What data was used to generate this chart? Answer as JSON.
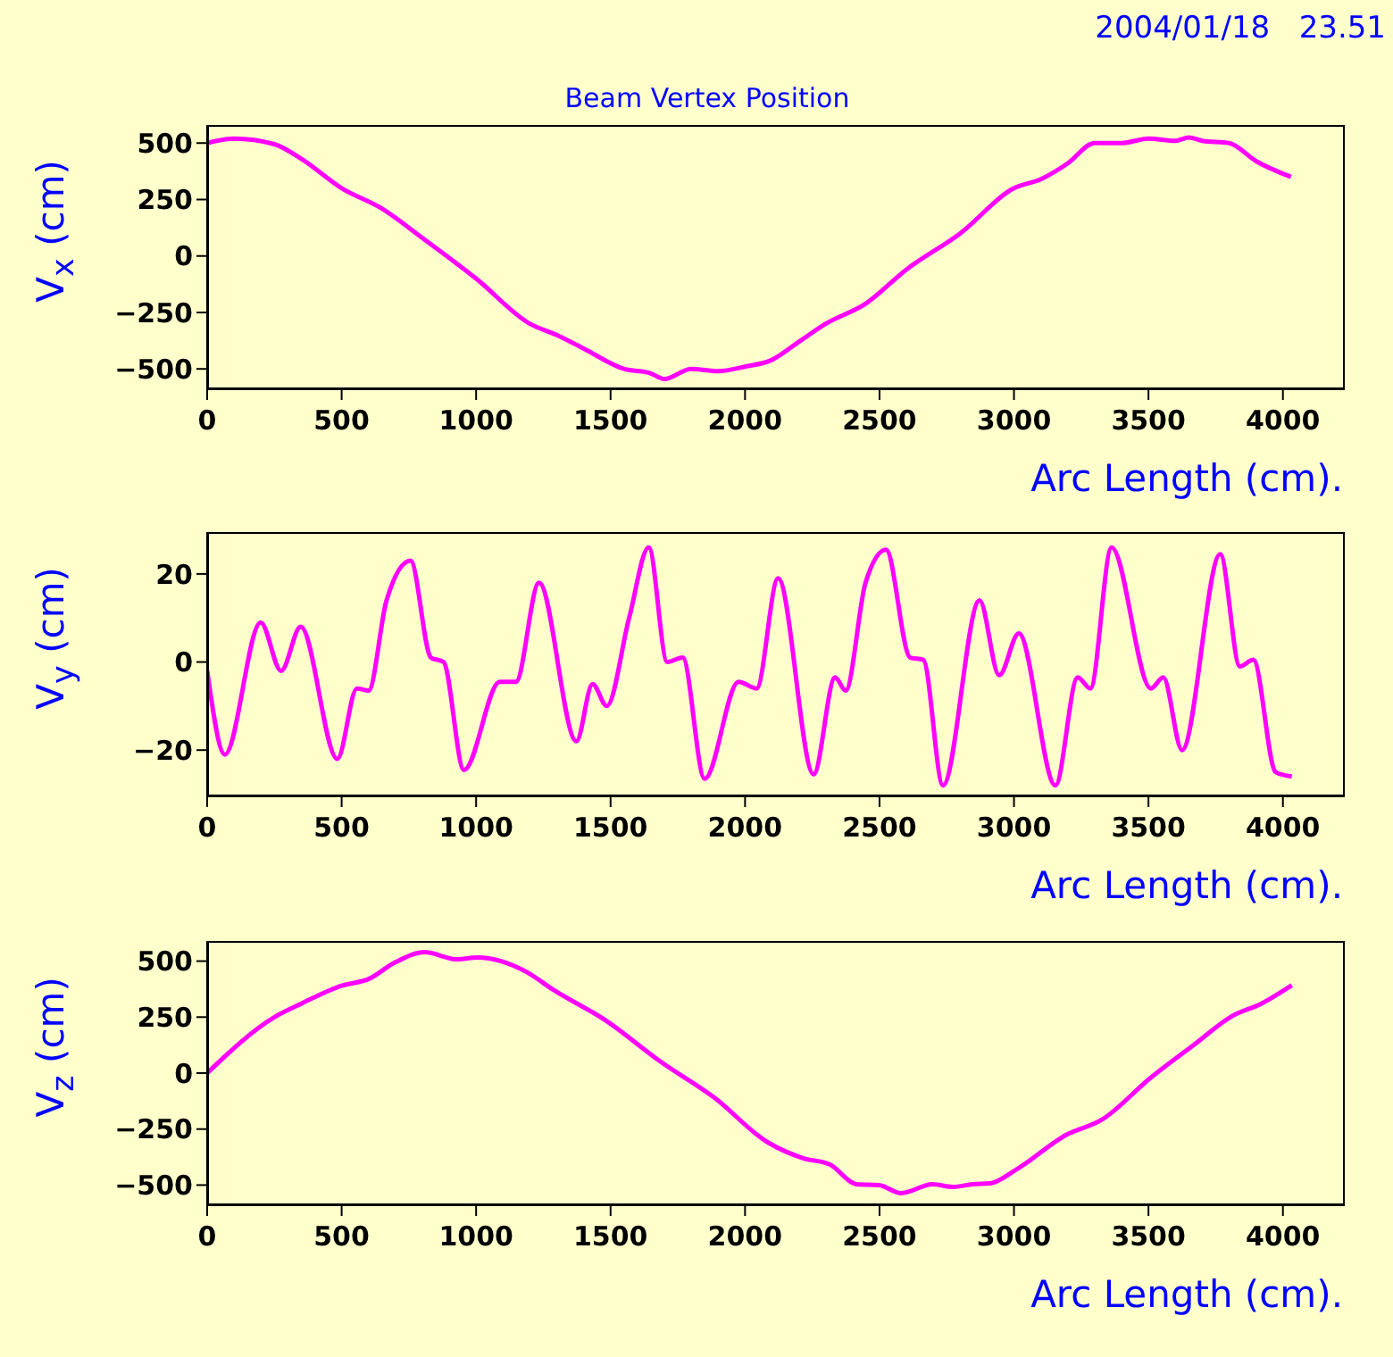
{
  "chart_data": [
    {
      "type": "line",
      "title": "Beam Vertex Position",
      "annotations": [
        "2004/01/18   23.51"
      ],
      "xlabel": "Arc Length (cm).",
      "ylabel": "V$_{x}$ (cm)",
      "xlim": [
        0,
        4230
      ],
      "xticks": [
        0,
        500,
        1000,
        1500,
        2000,
        2500,
        3000,
        3500,
        4000
      ],
      "ylim": [
        -590,
        580
      ],
      "yticks": [
        -500,
        -250,
        0,
        250,
        500
      ],
      "marker": "none",
      "x": [
        0,
        100,
        250,
        350,
        500,
        650,
        800,
        1000,
        1200,
        1300,
        1400,
        1550,
        1650,
        1700,
        1800,
        1900,
        2000,
        2100,
        2200,
        2300,
        2450,
        2600,
        2800,
        3000,
        3100,
        3200,
        3300,
        3400,
        3500,
        3600,
        3650,
        3700,
        3800,
        3900,
        4030
      ],
      "series": [
        {
          "color": "#ff00ff",
          "values": [
            500,
            520,
            495,
            430,
            300,
            210,
            80,
            -100,
            -300,
            -350,
            -410,
            -500,
            -520,
            -545,
            -500,
            -510,
            -490,
            -460,
            -380,
            -300,
            -210,
            -60,
            100,
            300,
            340,
            410,
            500,
            500,
            520,
            510,
            525,
            510,
            500,
            420,
            350
          ]
        }
      ]
    },
    {
      "type": "line",
      "xlabel": "Arc Length (cm).",
      "ylabel": "V$_{y}$ (cm)",
      "xlim": [
        0,
        4230
      ],
      "xticks": [
        0,
        500,
        1000,
        1500,
        2000,
        2500,
        3000,
        3500,
        4000
      ],
      "ylim": [
        -30.5,
        29.5
      ],
      "yticks": [
        -20,
        0,
        20
      ],
      "marker": "none",
      "x": [
        0,
        66,
        199,
        275,
        348,
        484,
        557,
        600,
        667,
        756,
        832,
        879,
        955,
        1088,
        1148,
        1234,
        1373,
        1433,
        1486,
        1569,
        1642,
        1711,
        1768,
        1850,
        1976,
        2043,
        2123,
        2255,
        2335,
        2374,
        2448,
        2524,
        2614,
        2663,
        2736,
        2872,
        2945,
        3018,
        3154,
        3237,
        3284,
        3363,
        3509,
        3555,
        3625,
        3767,
        3840,
        3890,
        3973,
        4033
      ],
      "series": [
        {
          "color": "#ff00ff",
          "values": [
            -2,
            -21,
            9,
            -2,
            8,
            -22,
            -6,
            -6.5,
            14,
            23,
            1,
            0,
            -24.5,
            -4.5,
            -4.5,
            18,
            -18,
            -5,
            -10,
            10,
            26,
            0,
            1,
            -26.5,
            -4.5,
            -6,
            19,
            -25.5,
            -3.5,
            -6.5,
            18,
            25.5,
            1,
            0.5,
            -28,
            14,
            -3,
            6.5,
            -28,
            -3.5,
            -6,
            26,
            -6,
            -3.5,
            -20,
            24.5,
            -1,
            0.5,
            -25,
            -26
          ]
        }
      ]
    },
    {
      "type": "line",
      "xlabel": "Arc Length (cm).",
      "ylabel": "V$_{z}$ (cm)",
      "xlim": [
        0,
        4230
      ],
      "xticks": [
        0,
        500,
        1000,
        1500,
        2000,
        2500,
        3000,
        3500,
        4000
      ],
      "ylim": [
        -590,
        590
      ],
      "yticks": [
        -500,
        -250,
        0,
        250,
        500
      ],
      "marker": "none",
      "x": [
        0,
        250,
        350,
        500,
        600,
        700,
        809,
        929,
        1005,
        1187,
        1287,
        1486,
        1685,
        1884,
        2083,
        2216,
        2315,
        2415,
        2498,
        2580,
        2697,
        2773,
        2846,
        2912,
        3012,
        3194,
        3327,
        3509,
        3675,
        3807,
        3923,
        4033
      ],
      "series": [
        {
          "color": "#ff00ff",
          "values": [
            0,
            250,
            310,
            390,
            420,
            495,
            540,
            508,
            516,
            452,
            372,
            232,
            52,
            -108,
            -308,
            -380,
            -408,
            -496,
            -500,
            -536,
            -496,
            -508,
            -496,
            -492,
            -428,
            -276,
            -208,
            -20,
            132,
            252,
            312,
            392
          ]
        }
      ]
    }
  ]
}
